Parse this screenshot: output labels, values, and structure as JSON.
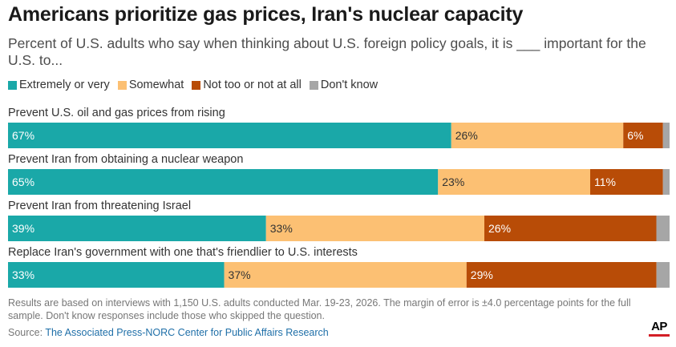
{
  "title": "Americans prioritize gas prices, Iran's nuclear capacity",
  "subtitle": "Percent of U.S. adults who say when thinking about U.S. foreign policy goals, it is ___ important for the U.S. to...",
  "chart_data": {
    "type": "bar",
    "orientation": "horizontal",
    "stacked": true,
    "categories": [
      "Prevent U.S. oil and gas prices from rising",
      "Prevent Iran from obtaining a nuclear weapon",
      "Prevent Iran from threatening Israel",
      "Replace Iran's government with one that's friendlier to U.S. interests"
    ],
    "series": [
      {
        "name": "Extremely or very",
        "color": "#1aa8a8",
        "values": [
          67,
          65,
          39,
          33
        ]
      },
      {
        "name": "Somewhat",
        "color": "#fcc073",
        "values": [
          26,
          23,
          33,
          37
        ]
      },
      {
        "name": "Not too or not at all",
        "color": "#b84c07",
        "values": [
          6,
          11,
          26,
          29
        ]
      },
      {
        "name": "Don't know",
        "color": "#a6a6a6",
        "values": [
          1,
          1,
          2,
          2
        ]
      }
    ],
    "data_labels": [
      [
        "67%",
        "26%",
        "6%",
        ""
      ],
      [
        "65%",
        "23%",
        "11%",
        ""
      ],
      [
        "39%",
        "33%",
        "26%",
        ""
      ],
      [
        "33%",
        "37%",
        "29%",
        ""
      ]
    ],
    "xlim": [
      0,
      100
    ]
  },
  "notes": "Results are based on interviews with 1,150 U.S. adults conducted Mar. 19-23, 2026. The margin of error is ±4.0 percentage points for the full sample. Don't know responses include those who skipped the question.",
  "source": {
    "label": "Source:",
    "link_text": "The Associated Press-NORC Center for Public Affairs Research"
  },
  "logo": {
    "text": "AP"
  }
}
